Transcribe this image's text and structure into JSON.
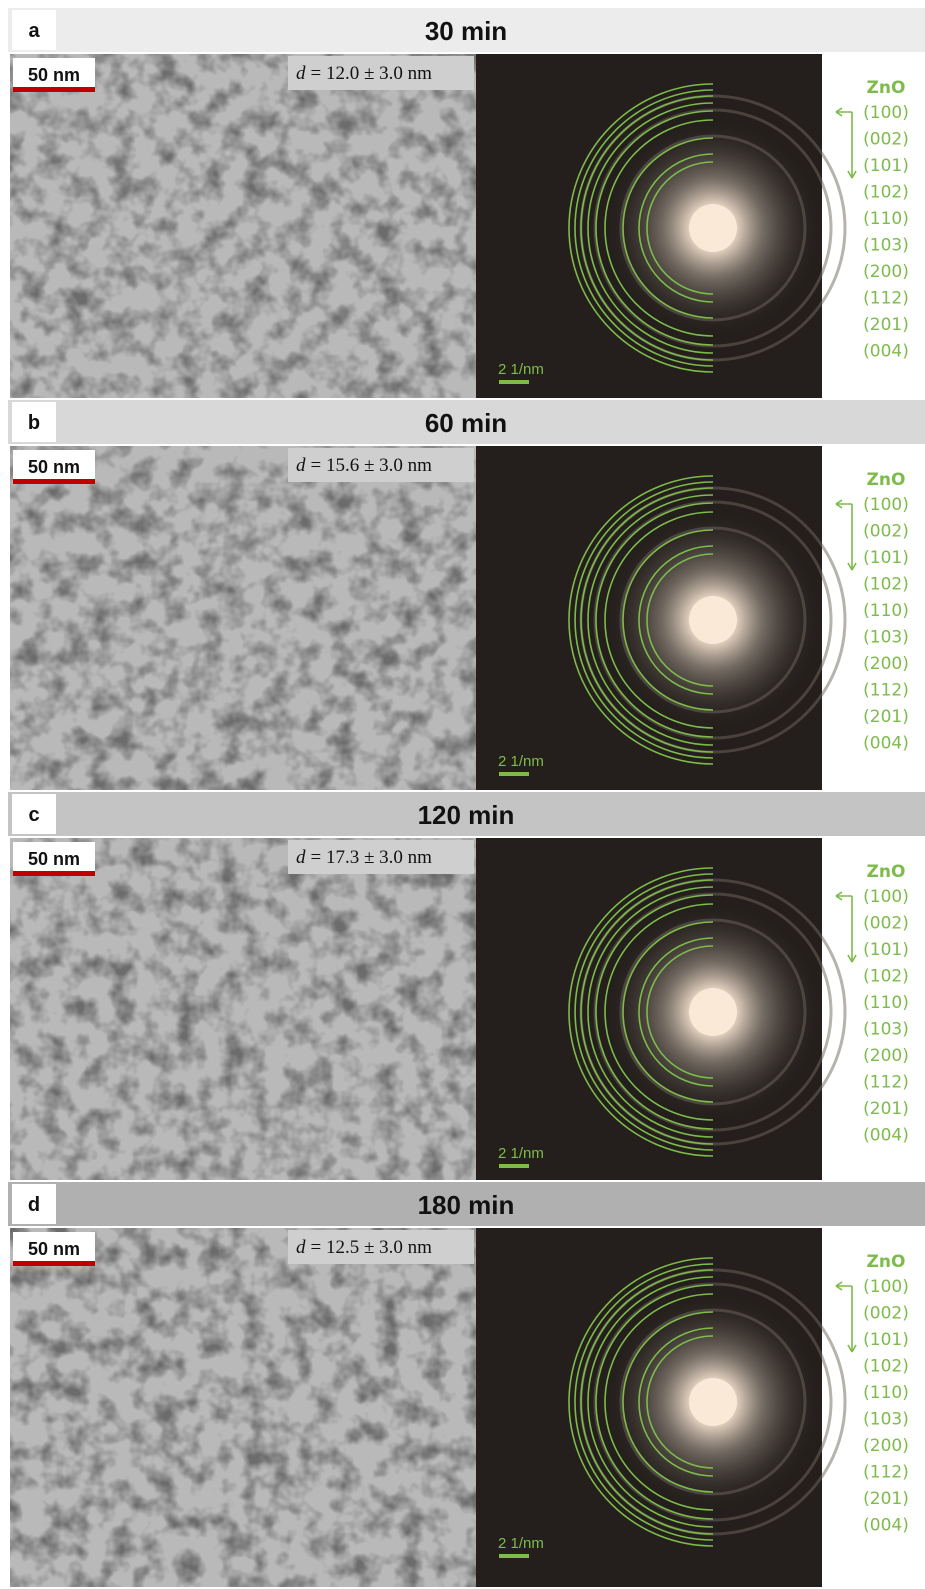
{
  "panels": [
    {
      "label": "a",
      "title": "30 min",
      "scale_bar": "50 nm",
      "diameter": {
        "symbol": "d",
        "text": "= 12.0 ± 3.0 nm"
      },
      "saed_scale": "2 1/nm",
      "phase": "ZnO",
      "planes": [
        "(100)",
        "(002)",
        "(101)",
        "(102)",
        "(110)",
        "(103)",
        "(200)",
        "(112)",
        "(201)",
        "(004)"
      ]
    },
    {
      "label": "b",
      "title": "60 min",
      "scale_bar": "50 nm",
      "diameter": {
        "symbol": "d",
        "text": "= 15.6 ± 3.0 nm"
      },
      "saed_scale": "2 1/nm",
      "phase": "ZnO",
      "planes": [
        "(100)",
        "(002)",
        "(101)",
        "(102)",
        "(110)",
        "(103)",
        "(200)",
        "(112)",
        "(201)",
        "(004)"
      ]
    },
    {
      "label": "c",
      "title": "120 min",
      "scale_bar": "50 nm",
      "diameter": {
        "symbol": "d",
        "text": "= 17.3 ± 3.0 nm"
      },
      "saed_scale": "2 1/nm",
      "phase": "ZnO",
      "planes": [
        "(100)",
        "(002)",
        "(101)",
        "(102)",
        "(110)",
        "(103)",
        "(200)",
        "(112)",
        "(201)",
        "(004)"
      ]
    },
    {
      "label": "d",
      "title": "180 min",
      "scale_bar": "50 nm",
      "diameter": {
        "symbol": "d",
        "text": "= 12.5 ± 3.0 nm"
      },
      "saed_scale": "2 1/nm",
      "phase": "ZnO",
      "planes": [
        "(100)",
        "(002)",
        "(101)",
        "(102)",
        "(110)",
        "(103)",
        "(200)",
        "(112)",
        "(201)",
        "(004)"
      ]
    }
  ]
}
